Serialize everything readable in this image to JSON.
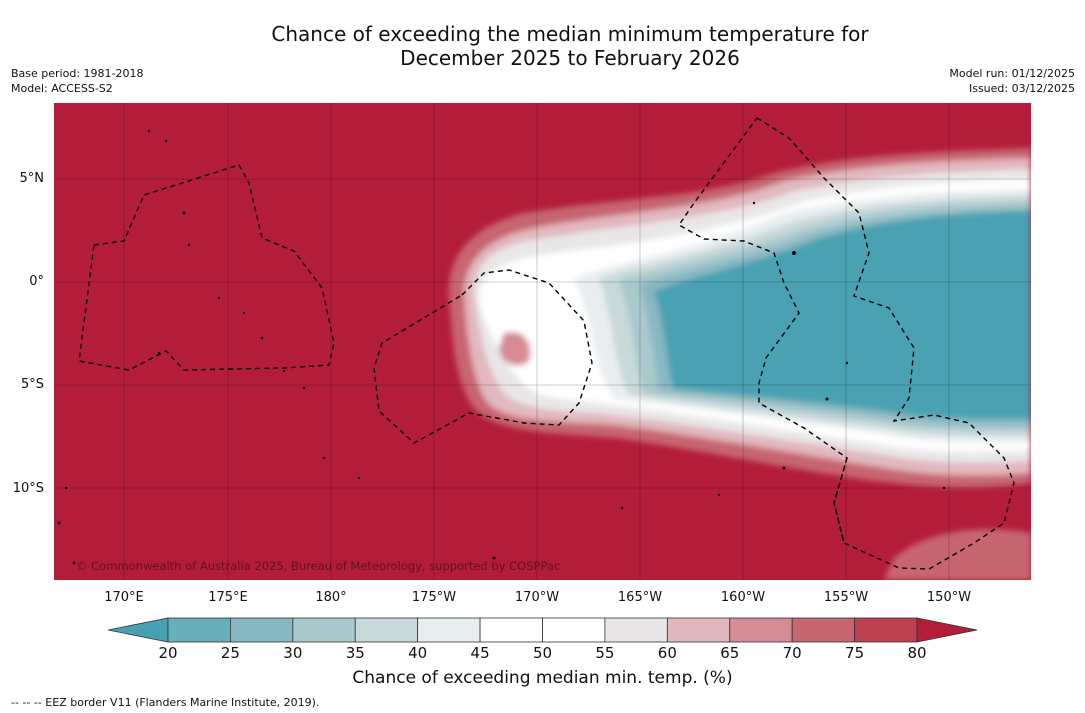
{
  "title": {
    "line1": "Chance of exceeding the median minimum temperature for",
    "line2": "December 2025 to February 2026"
  },
  "meta": {
    "base_period": "Base period: 1981-2018",
    "model": "Model: ACCESS-S2",
    "model_run": "Model run: 01/12/2025",
    "issued": "Issued: 03/12/2025"
  },
  "map": {
    "copyright": "© Commonwealth of Australia 2025, Bureau of Meteorology, supported by COSPPac",
    "lat_labels": [
      "5°N",
      "0°",
      "5°S",
      "10°S"
    ],
    "lon_labels": [
      "170°E",
      "175°E",
      "180°",
      "175°W",
      "170°W",
      "165°W",
      "160°W",
      "155°W",
      "150°W"
    ],
    "colors": {
      "warm": "#b31d3a",
      "cool": "#48a1b2",
      "neutral": "#ffffff"
    }
  },
  "colorbar": {
    "ticks": [
      "20",
      "25",
      "30",
      "35",
      "40",
      "45",
      "50",
      "55",
      "60",
      "65",
      "70",
      "75",
      "80"
    ],
    "colors": [
      "#69aebb",
      "#88b8c2",
      "#a9c9cc",
      "#c9d9da",
      "#e8eef0",
      "#ffffff",
      "#ffffff",
      "#e8e6e7",
      "#e1b8bd",
      "#d58c95",
      "#c76571",
      "#bc4050"
    ],
    "under_color": "#48a1b2",
    "over_color": "#b31d3a",
    "label": "Chance of exceeding median min. temp. (%)"
  },
  "footer": {
    "eez_note": "--  --  -- EEZ border V11 (Flanders Marine Institute, 2019)."
  }
}
